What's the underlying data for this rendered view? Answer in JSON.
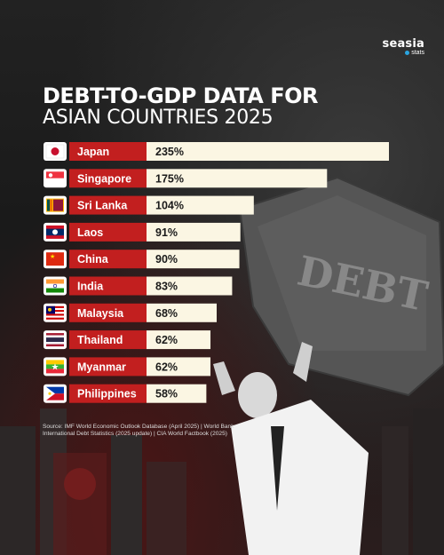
{
  "brand": {
    "name": "seasia",
    "sub": "stats",
    "dot_color": "#2aa5e0"
  },
  "header": {
    "title_line1": "DEBT-TO-GDP DATA FOR",
    "title_line2": "ASIAN COUNTRIES 2025"
  },
  "source": "Source: IMF World Economic Outlook Database (April 2025) | World Bank International Debt Statistics (2025 update) | CIA World Factbook (2025)",
  "rock_text": "DEBT",
  "colors": {
    "label_bg": "#c21f1f",
    "bar_bg": "#fbf6e3",
    "text_dark": "#1a1a1a"
  },
  "chart_data": {
    "type": "bar",
    "orientation": "horizontal",
    "categories": [
      "Japan",
      "Singapore",
      "Sri Lanka",
      "Laos",
      "China",
      "India",
      "Malaysia",
      "Thailand",
      "Myanmar",
      "Philippines"
    ],
    "flag_icons": [
      "japan-flag-icon",
      "singapore-flag-icon",
      "sri-lanka-flag-icon",
      "laos-flag-icon",
      "china-flag-icon",
      "india-flag-icon",
      "malaysia-flag-icon",
      "thailand-flag-icon",
      "myanmar-flag-icon",
      "philippines-flag-icon"
    ],
    "values": [
      235,
      175,
      104,
      91,
      90,
      83,
      68,
      62,
      62,
      58
    ],
    "value_labels": [
      "235%",
      "175%",
      "104%",
      "91%",
      "90%",
      "83%",
      "68%",
      "62%",
      "62%",
      "58%"
    ],
    "unit": "%"
  }
}
